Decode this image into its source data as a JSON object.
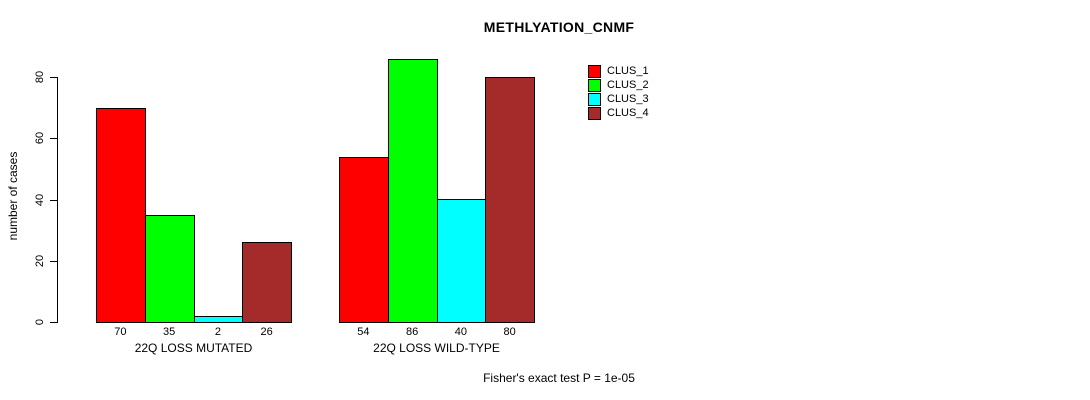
{
  "title": "METHLYATION_CNMF",
  "footer_note": "Fisher's exact test P = 1e-05",
  "y_axis": {
    "label": "number of cases",
    "tick_labels": [
      "0",
      "20",
      "40",
      "60",
      "80"
    ]
  },
  "legend": {
    "items": [
      {
        "label": "CLUS_1",
        "color": "#FF0000"
      },
      {
        "label": "CLUS_2",
        "color": "#00FF00"
      },
      {
        "label": "CLUS_3",
        "color": "#00FFFF"
      },
      {
        "label": "CLUS_4",
        "color": "#A52A2A"
      }
    ]
  },
  "chart_data": {
    "type": "bar",
    "title": "METHLYATION_CNMF",
    "xlabel": "",
    "ylabel": "number of cases",
    "categories": [
      "22Q LOSS MUTATED",
      "22Q LOSS WILD-TYPE"
    ],
    "series": [
      {
        "name": "CLUS_1",
        "color": "#FF0000",
        "values": [
          70,
          54
        ]
      },
      {
        "name": "CLUS_2",
        "color": "#00FF00",
        "values": [
          35,
          86
        ]
      },
      {
        "name": "CLUS_3",
        "color": "#00FFFF",
        "values": [
          2,
          40
        ]
      },
      {
        "name": "CLUS_4",
        "color": "#A52A2A",
        "values": [
          26,
          80
        ]
      }
    ],
    "bar_value_labels": [
      [
        70,
        35,
        2,
        26
      ],
      [
        54,
        86,
        40,
        80
      ]
    ],
    "yticks": [
      0,
      20,
      40,
      60,
      80
    ],
    "ylim": [
      0,
      88
    ],
    "grid": false,
    "legend_position": "right-of-plot-top",
    "annotation": "Fisher's exact test P = 1e-05"
  }
}
